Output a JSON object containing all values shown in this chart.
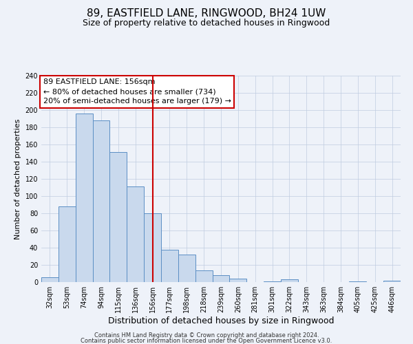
{
  "title": "89, EASTFIELD LANE, RINGWOOD, BH24 1UW",
  "subtitle": "Size of property relative to detached houses in Ringwood",
  "xlabel": "Distribution of detached houses by size in Ringwood",
  "ylabel": "Number of detached properties",
  "categories": [
    "32sqm",
    "53sqm",
    "74sqm",
    "94sqm",
    "115sqm",
    "136sqm",
    "156sqm",
    "177sqm",
    "198sqm",
    "218sqm",
    "239sqm",
    "260sqm",
    "281sqm",
    "301sqm",
    "322sqm",
    "343sqm",
    "363sqm",
    "384sqm",
    "405sqm",
    "425sqm",
    "446sqm"
  ],
  "values": [
    6,
    88,
    196,
    188,
    151,
    111,
    80,
    38,
    32,
    14,
    8,
    4,
    0,
    1,
    3,
    0,
    0,
    0,
    1,
    0,
    2
  ],
  "bar_color": "#c9d9ed",
  "bar_edge_color": "#5b8ec4",
  "vline_x": 6,
  "vline_color": "#cc0000",
  "ylim": [
    0,
    240
  ],
  "yticks": [
    0,
    20,
    40,
    60,
    80,
    100,
    120,
    140,
    160,
    180,
    200,
    220,
    240
  ],
  "annotation_box_text": "89 EASTFIELD LANE: 156sqm\n← 80% of detached houses are smaller (734)\n20% of semi-detached houses are larger (179) →",
  "annotation_box_edge_color": "#cc0000",
  "annotation_box_bg": "#ffffff",
  "footer_line1": "Contains HM Land Registry data © Crown copyright and database right 2024.",
  "footer_line2": "Contains public sector information licensed under the Open Government Licence v3.0.",
  "title_fontsize": 11,
  "subtitle_fontsize": 9,
  "xlabel_fontsize": 9,
  "ylabel_fontsize": 8,
  "tick_fontsize": 7,
  "footer_fontsize": 6,
  "annotation_fontsize": 8,
  "background_color": "#eef2f9"
}
